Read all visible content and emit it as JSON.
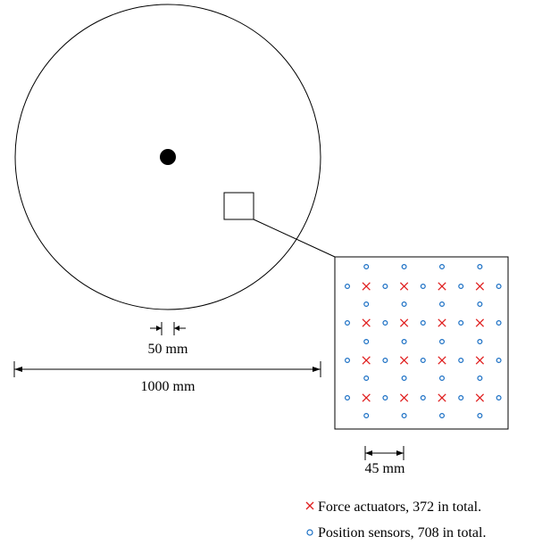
{
  "dimensions": {
    "actuator_pitch": "50 mm",
    "mirror_diameter": "1000 mm",
    "grid_pitch": "45 mm"
  },
  "legend": {
    "actuators": {
      "symbol": "×",
      "label": "Force actuators, 372 in total.",
      "color": "#e02020"
    },
    "sensors": {
      "symbol": "○",
      "label": "Position sensors, 708 in total.",
      "color": "#1a6fc4"
    }
  },
  "colors": {
    "line": "#000000",
    "actuator": "#e02020",
    "sensor": "#1a6fc4"
  }
}
